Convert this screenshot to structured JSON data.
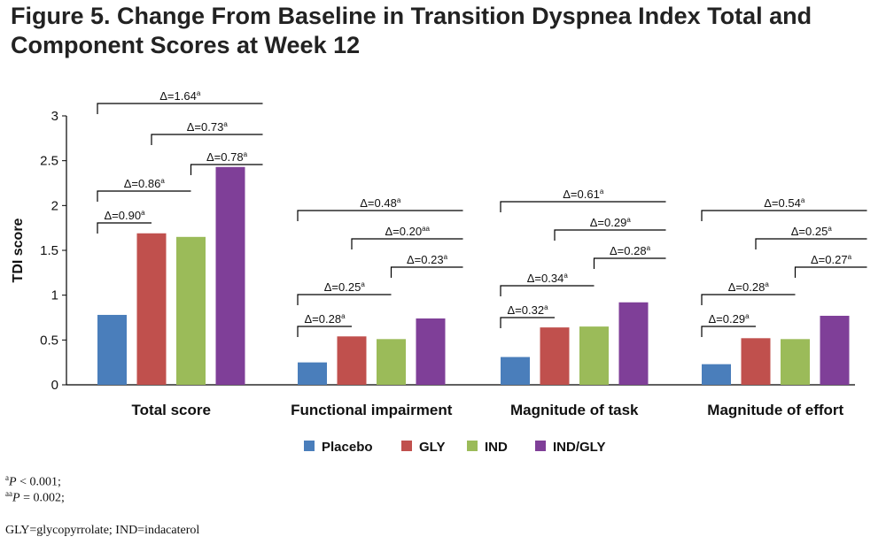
{
  "title": "Figure 5. Change From Baseline in Transition Dyspnea Index Total and Component Scores at Week 12",
  "chart_data": {
    "type": "bar",
    "ylabel": "TDI score",
    "ylim": [
      0,
      3
    ],
    "yticks": [
      "0",
      "0.5",
      "1",
      "1.5",
      "2",
      "2.5",
      "3"
    ],
    "categories": [
      "Total score",
      "Functional impairment",
      "Magnitude of task",
      "Magnitude of effort"
    ],
    "series": [
      {
        "name": "Placebo",
        "color": "#4a7ebb",
        "values": [
          0.78,
          0.25,
          0.31,
          0.23
        ]
      },
      {
        "name": "GLY",
        "color": "#c0504d",
        "values": [
          1.69,
          0.54,
          0.64,
          0.52
        ]
      },
      {
        "name": "IND",
        "color": "#9bbb59",
        "values": [
          1.65,
          0.51,
          0.65,
          0.51
        ]
      },
      {
        "name": "IND/GLY",
        "color": "#7f3f98",
        "values": [
          2.43,
          0.74,
          0.92,
          0.77
        ]
      }
    ],
    "comparisons": [
      [
        {
          "label": "Δ=1.64",
          "sup": "a",
          "from": 0,
          "to": 3
        },
        {
          "label": "Δ=0.73",
          "sup": "a",
          "from": 1,
          "to": 3
        },
        {
          "label": "Δ=0.78",
          "sup": "a",
          "from": 2,
          "to": 3
        },
        {
          "label": "Δ=0.86",
          "sup": "a",
          "from": 0,
          "to": 2
        },
        {
          "label": "Δ=0.90",
          "sup": "a",
          "from": 0,
          "to": 1
        }
      ],
      [
        {
          "label": "Δ=0.48",
          "sup": "a",
          "from": 0,
          "to": 3
        },
        {
          "label": "Δ=0.20",
          "sup": "aa",
          "from": 1,
          "to": 3
        },
        {
          "label": "Δ=0.23",
          "sup": "a",
          "from": 2,
          "to": 3
        },
        {
          "label": "Δ=0.25",
          "sup": "a",
          "from": 0,
          "to": 2
        },
        {
          "label": "Δ=0.28",
          "sup": "a",
          "from": 0,
          "to": 1
        }
      ],
      [
        {
          "label": "Δ=0.61",
          "sup": "a",
          "from": 0,
          "to": 3
        },
        {
          "label": "Δ=0.29",
          "sup": "a",
          "from": 1,
          "to": 3
        },
        {
          "label": "Δ=0.28",
          "sup": "a",
          "from": 2,
          "to": 3
        },
        {
          "label": "Δ=0.34",
          "sup": "a",
          "from": 0,
          "to": 2
        },
        {
          "label": "Δ=0.32",
          "sup": "a",
          "from": 0,
          "to": 1
        }
      ],
      [
        {
          "label": "Δ=0.54",
          "sup": "a",
          "from": 0,
          "to": 3
        },
        {
          "label": "Δ=0.25",
          "sup": "a",
          "from": 1,
          "to": 3
        },
        {
          "label": "Δ=0.27",
          "sup": "a",
          "from": 2,
          "to": 3
        },
        {
          "label": "Δ=0.28",
          "sup": "a",
          "from": 0,
          "to": 2
        },
        {
          "label": "Δ=0.29",
          "sup": "a",
          "from": 0,
          "to": 1
        }
      ]
    ],
    "legend": "bottom-center",
    "grid": false
  },
  "footnotes": {
    "a_sup": "a",
    "a_p": "P",
    "a_text": " < 0.001;",
    "aa_sup": "aa",
    "aa_p": "P",
    "aa_text": " = 0.002;",
    "abbrev": "GLY=glycopyrrolate; IND=indacaterol"
  }
}
